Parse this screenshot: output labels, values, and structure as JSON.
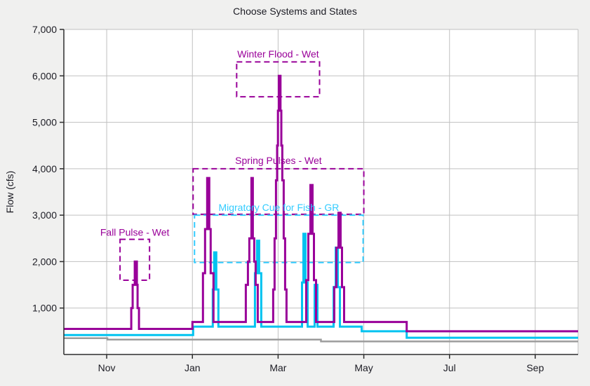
{
  "chart_data": {
    "type": "line",
    "title": "Choose Systems and States",
    "ylabel": "Flow (cfs)",
    "xlabel": "",
    "x_unit": "days from Oct 1 (water year)",
    "xlim": [
      0,
      366
    ],
    "ylim": [
      0,
      7000
    ],
    "grid": true,
    "legend": "none",
    "colors": {
      "background": "#f0f0ef",
      "plot_background": "#ffffff",
      "grid": "#c0c0c0",
      "axis": "#2e2e2e",
      "text": "#1c1c24",
      "purple_series": "#990099",
      "cyan_series": "#00c3f0",
      "gray_series": "#9c9c9c",
      "cyan_annotation": "#33ccff"
    },
    "yticks": [
      {
        "value": 1000,
        "label": "1,000"
      },
      {
        "value": 2000,
        "label": "2,000"
      },
      {
        "value": 3000,
        "label": "3,000"
      },
      {
        "value": 4000,
        "label": "4,000"
      },
      {
        "value": 5000,
        "label": "5,000"
      },
      {
        "value": 6000,
        "label": "6,000"
      },
      {
        "value": 7000,
        "label": "7,000"
      }
    ],
    "xticks": [
      {
        "day": 30.5,
        "label": "Nov"
      },
      {
        "day": 91.5,
        "label": "Jan"
      },
      {
        "day": 152.5,
        "label": "Mar"
      },
      {
        "day": 213.5,
        "label": "May"
      },
      {
        "day": 274.5,
        "label": "Jul"
      },
      {
        "day": 335.5,
        "label": "Sep"
      }
    ],
    "series": [
      {
        "name": "gray-flow",
        "color": "#9c9c9c",
        "width": 2.5,
        "mode": "step",
        "points": [
          [
            0,
            350
          ],
          [
            31,
            320
          ],
          [
            183,
            280
          ],
          [
            366,
            280
          ]
        ]
      },
      {
        "name": "cyan-flow",
        "color": "#00c3f0",
        "width": 3,
        "mode": "step",
        "points": [
          [
            0,
            420
          ],
          [
            92,
            600
          ],
          [
            106,
            1400
          ],
          [
            107,
            2200
          ],
          [
            108.5,
            1400
          ],
          [
            110,
            600
          ],
          [
            136,
            1750
          ],
          [
            137.5,
            2450
          ],
          [
            139,
            1750
          ],
          [
            140.5,
            600
          ],
          [
            169.5,
            1550
          ],
          [
            170.5,
            2600
          ],
          [
            172,
            1550
          ],
          [
            173.5,
            600
          ],
          [
            178.5,
            1500
          ],
          [
            180.5,
            600
          ],
          [
            192,
            1450
          ],
          [
            193.5,
            2300
          ],
          [
            195,
            1450
          ],
          [
            196.5,
            600
          ],
          [
            212,
            500
          ],
          [
            244,
            360
          ],
          [
            366,
            360
          ]
        ]
      },
      {
        "name": "purple-flow",
        "color": "#990099",
        "width": 3,
        "mode": "step",
        "points": [
          [
            0,
            550
          ],
          [
            48,
            1000
          ],
          [
            49,
            1500
          ],
          [
            50.5,
            2000
          ],
          [
            52,
            1500
          ],
          [
            52.5,
            1000
          ],
          [
            53.5,
            550
          ],
          [
            91.5,
            700
          ],
          [
            99,
            1750
          ],
          [
            100.5,
            2700
          ],
          [
            102,
            3800
          ],
          [
            103.5,
            2700
          ],
          [
            104.5,
            1750
          ],
          [
            106.5,
            700
          ],
          [
            129.5,
            1500
          ],
          [
            131,
            2000
          ],
          [
            132,
            2500
          ],
          [
            133.5,
            3800
          ],
          [
            134.5,
            2500
          ],
          [
            135.5,
            2000
          ],
          [
            136.5,
            1500
          ],
          [
            138,
            700
          ],
          [
            149,
            1400
          ],
          [
            150,
            2500
          ],
          [
            151,
            3750
          ],
          [
            151.8,
            4500
          ],
          [
            152.4,
            5250
          ],
          [
            153,
            6000
          ],
          [
            154.2,
            5250
          ],
          [
            154.8,
            4500
          ],
          [
            155.5,
            3750
          ],
          [
            156.5,
            2500
          ],
          [
            157.5,
            1400
          ],
          [
            158.5,
            700
          ],
          [
            172.5,
            1600
          ],
          [
            174,
            2600
          ],
          [
            175.5,
            3650
          ],
          [
            177,
            2600
          ],
          [
            178,
            1600
          ],
          [
            179.5,
            700
          ],
          [
            192.5,
            1450
          ],
          [
            194,
            2300
          ],
          [
            195.5,
            3050
          ],
          [
            197,
            2300
          ],
          [
            198,
            1450
          ],
          [
            199.5,
            700
          ],
          [
            244,
            500
          ],
          [
            366,
            500
          ]
        ]
      }
    ],
    "annotations": [
      {
        "id": "fall-pulse",
        "label": "Fall Pulse - Wet",
        "color": "#990099",
        "x0": 40,
        "x1": 61,
        "y0": 1600,
        "y1": 2480,
        "label_y": 2560
      },
      {
        "id": "winter-flood",
        "label": "Winter Flood - Wet",
        "color": "#990099",
        "x0": 123,
        "x1": 182,
        "y0": 5550,
        "y1": 6300,
        "label_y": 6400
      },
      {
        "id": "spring-pulses",
        "label": "Spring Pulses - Wet",
        "color": "#990099",
        "x0": 92,
        "x1": 213.5,
        "y0": 3020,
        "y1": 4000,
        "label_y": 4100
      },
      {
        "id": "migratory-cue",
        "label": "Migratory Cue for Fish - GR",
        "color": "#33ccff",
        "x0": 93,
        "x1": 213,
        "y0": 1980,
        "y1": 3000,
        "label_y": 3090
      }
    ]
  }
}
